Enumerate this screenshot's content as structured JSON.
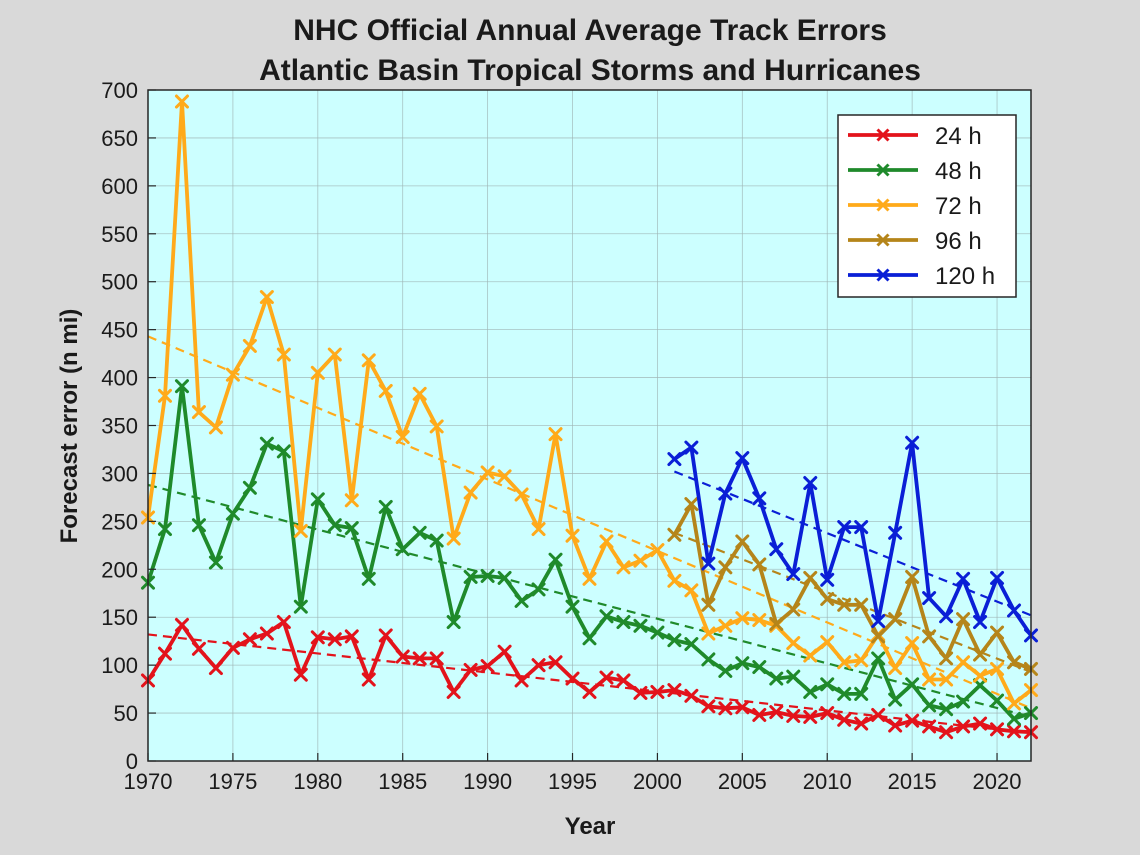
{
  "chart_data": {
    "type": "line",
    "title": "NHC Official Annual Average Track Errors",
    "subtitle": "Atlantic Basin Tropical Storms and Hurricanes",
    "xlabel": "Year",
    "ylabel": "Forecast error (n mi)",
    "xlim": [
      1970,
      2022
    ],
    "ylim": [
      0,
      700
    ],
    "xticks": [
      1970,
      1975,
      1980,
      1985,
      1990,
      1995,
      2000,
      2005,
      2010,
      2015,
      2020
    ],
    "yticks": [
      0,
      50,
      100,
      150,
      200,
      250,
      300,
      350,
      400,
      450,
      500,
      550,
      600,
      650,
      700
    ],
    "grid": true,
    "legend_position": "top-right",
    "background_color": "#ccffff",
    "series": [
      {
        "name": "24 h",
        "color": "#e3131b",
        "start_year": 1970,
        "values": [
          84,
          112,
          142,
          117,
          97,
          118,
          127,
          133,
          145,
          90,
          129,
          127,
          130,
          85,
          131,
          109,
          107,
          107,
          72,
          95,
          99,
          114,
          84,
          100,
          103,
          86,
          72,
          87,
          84,
          71,
          72,
          74,
          68,
          57,
          55,
          56,
          48,
          51,
          47,
          46,
          50,
          43,
          39,
          48,
          37,
          42,
          36,
          30,
          36,
          39,
          33,
          31,
          30
        ],
        "trend": [
          132,
          29
        ]
      },
      {
        "name": "48 h",
        "color": "#1f8a2b",
        "start_year": 1970,
        "values": [
          186,
          242,
          391,
          246,
          207,
          258,
          285,
          331,
          323,
          161,
          273,
          246,
          243,
          190,
          265,
          221,
          238,
          230,
          145,
          192,
          193,
          191,
          167,
          179,
          210,
          161,
          128,
          151,
          145,
          141,
          134,
          126,
          122,
          106,
          94,
          102,
          98,
          86,
          88,
          72,
          80,
          70,
          70,
          107,
          64,
          80,
          58,
          54,
          62,
          79,
          63,
          44,
          50
        ],
        "trend": [
          288,
          46
        ]
      },
      {
        "name": "72 h",
        "color": "#ffaa1a",
        "start_year": 1970,
        "values": [
          254,
          381,
          688,
          364,
          348,
          403,
          433,
          484,
          424,
          240,
          405,
          424,
          272,
          418,
          386,
          338,
          383,
          349,
          232,
          280,
          301,
          297,
          278,
          242,
          341,
          235,
          190,
          229,
          202,
          209,
          220,
          188,
          178,
          133,
          141,
          149,
          147,
          141,
          123,
          110,
          124,
          103,
          105,
          132,
          97,
          123,
          85,
          85,
          103,
          89,
          96,
          60,
          74
        ],
        "trend": [
          443,
          55
        ]
      },
      {
        "name": "96 h",
        "color": "#b5851a",
        "start_year": 2001,
        "values": [
          236,
          268,
          163,
          202,
          229,
          205,
          143,
          158,
          191,
          169,
          163,
          163,
          130,
          148,
          192,
          130,
          107,
          148,
          111,
          134,
          103,
          96
        ],
        "trend": [
          238,
          93
        ]
      },
      {
        "name": "120 h",
        "color": "#0a1fd6",
        "start_year": 2001,
        "values": [
          315,
          327,
          206,
          279,
          316,
          274,
          221,
          195,
          290,
          189,
          244,
          244,
          146,
          238,
          332,
          170,
          151,
          190,
          145,
          191,
          157,
          131
        ],
        "trend": [
          302,
          152
        ]
      }
    ]
  }
}
